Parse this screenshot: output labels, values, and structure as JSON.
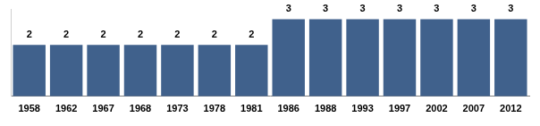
{
  "chart_data": {
    "type": "bar",
    "categories": [
      "1958",
      "1962",
      "1967",
      "1968",
      "1973",
      "1978",
      "1981",
      "1986",
      "1988",
      "1993",
      "1997",
      "2002",
      "2007",
      "2012"
    ],
    "values": [
      2,
      2,
      2,
      2,
      2,
      2,
      2,
      3,
      3,
      3,
      3,
      3,
      3,
      3
    ],
    "color": "#40618c",
    "ylim": [
      0,
      3.4
    ],
    "grid": false,
    "data_labels": true,
    "tick_labels": "x"
  }
}
